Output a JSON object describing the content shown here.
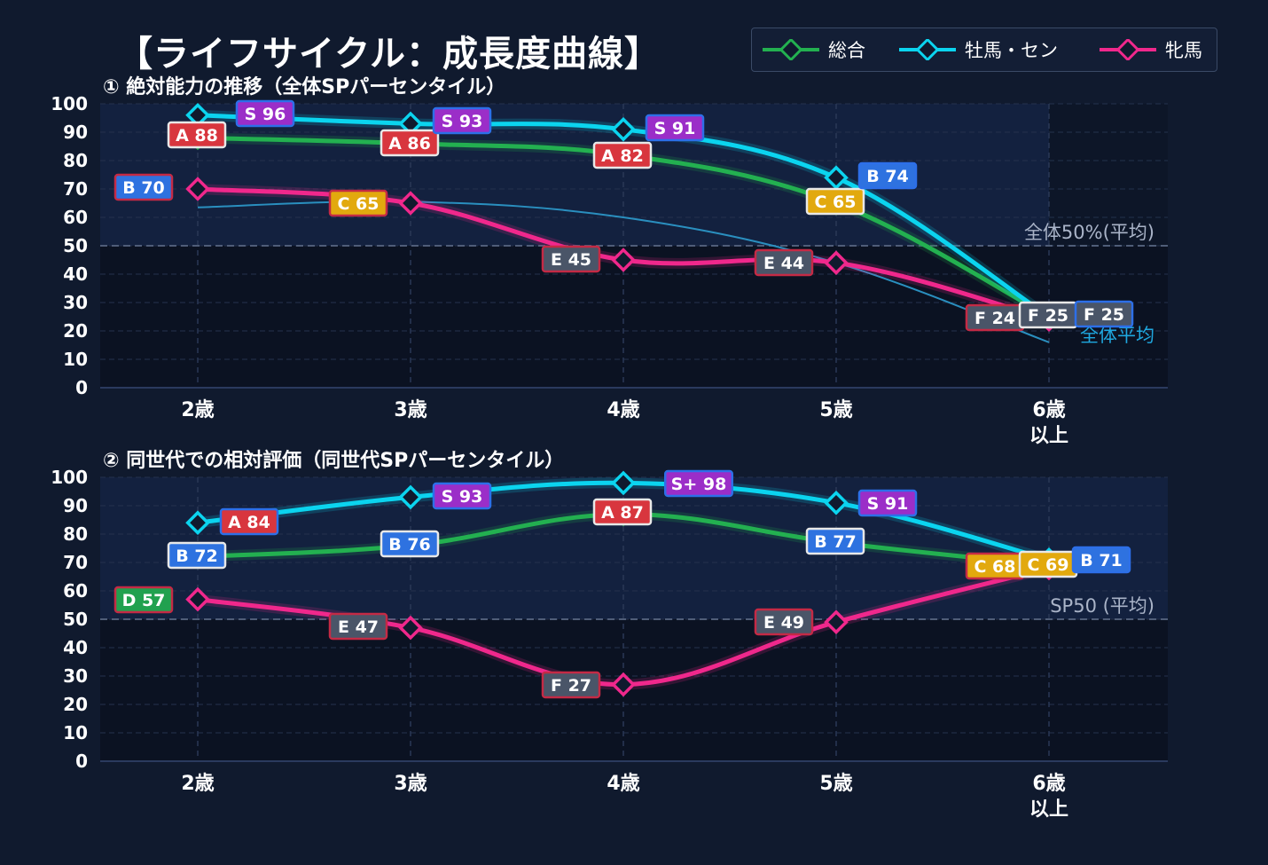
{
  "title": "【ライフサイクル：成長度曲線】",
  "colors": {
    "background": "#101a2e",
    "plot_bg": "#0b1222",
    "plot_upper_bg": "#13213f",
    "grid": "#24314d",
    "refline": "#4f5d78",
    "overall": "#23b050",
    "male": "#0bd4ef",
    "female": "#f0288c",
    "pop_avg_line": "#2a8fbf"
  },
  "legend": [
    {
      "key": "overall",
      "label": "総合",
      "color": "#23b050"
    },
    {
      "key": "male",
      "label": "牡馬・セン",
      "color": "#0bd4ef"
    },
    {
      "key": "female",
      "label": "牝馬",
      "color": "#f0288c"
    }
  ],
  "chart_data": [
    {
      "type": "line",
      "title": "① 絶対能力の推移（全体SPパーセンタイル）",
      "categories": [
        "2歳",
        "3歳",
        "4歳",
        "5歳",
        "6歳\n以上"
      ],
      "ylim": [
        0,
        100
      ],
      "yticks": [
        0,
        10,
        20,
        30,
        40,
        50,
        60,
        70,
        80,
        90,
        100
      ],
      "grid": true,
      "series": [
        {
          "name": "総合",
          "key": "overall",
          "values": [
            88,
            86,
            82,
            65,
            25
          ],
          "labels": [
            "A 88",
            "A 86",
            "A 82",
            "C 65",
            "F 25"
          ]
        },
        {
          "name": "牡馬・セン",
          "key": "male",
          "values": [
            96,
            93,
            91,
            74,
            25
          ],
          "labels": [
            "S 96",
            "S 93",
            "S 91",
            "B 74",
            "F 25"
          ]
        },
        {
          "name": "牝馬",
          "key": "female",
          "values": [
            70,
            65,
            45,
            44,
            24
          ],
          "labels": [
            "B 70",
            "C 65",
            "E 45",
            "E 44",
            "F 24"
          ]
        }
      ],
      "population_average": {
        "values": [
          63.5,
          65.5,
          60,
          44,
          16
        ],
        "label": "全体平均"
      },
      "reference_line": {
        "y": 50,
        "label": "全体50%(平均)"
      }
    },
    {
      "type": "line",
      "title": "② 同世代での相対評価（同世代SPパーセンタイル）",
      "categories": [
        "2歳",
        "3歳",
        "4歳",
        "5歳",
        "6歳\n以上"
      ],
      "ylim": [
        0,
        100
      ],
      "yticks": [
        0,
        10,
        20,
        30,
        40,
        50,
        60,
        70,
        80,
        90,
        100
      ],
      "grid": true,
      "series": [
        {
          "name": "総合",
          "key": "overall",
          "values": [
            72,
            76,
            87,
            77,
            69
          ],
          "labels": [
            "B 72",
            "B 76",
            "A 87",
            "B 77",
            "C 69"
          ]
        },
        {
          "name": "牡馬・セン",
          "key": "male",
          "values": [
            84,
            93,
            98,
            91,
            71
          ],
          "labels": [
            "A 84",
            "S 93",
            "S+ 98",
            "S 91",
            "B 71"
          ]
        },
        {
          "name": "牝馬",
          "key": "female",
          "values": [
            57,
            47,
            27,
            49,
            68
          ],
          "labels": [
            "D 57",
            "E 47",
            "F 27",
            "E 49",
            "C 68"
          ]
        }
      ],
      "reference_line": {
        "y": 50,
        "label": "SP50 (平均)"
      }
    }
  ]
}
